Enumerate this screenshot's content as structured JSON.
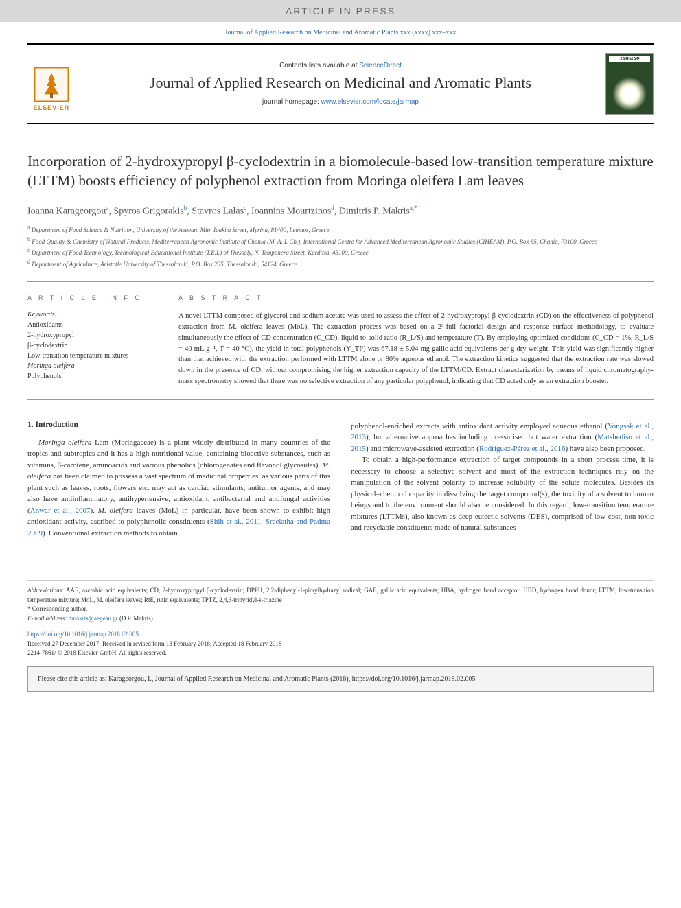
{
  "banner": {
    "article_in_press": "ARTICLE IN PRESS",
    "citation_line": "Journal of Applied Research on Medicinal and Aromatic Plants xxx (xxxx) xxx–xxx"
  },
  "header": {
    "contents_prefix": "Contents lists available at ",
    "contents_link": "ScienceDirect",
    "journal_title": "Journal of Applied Research on Medicinal and Aromatic Plants",
    "homepage_prefix": "journal homepage: ",
    "homepage_link": "www.elsevier.com/locate/jarmap",
    "elsevier_label": "ELSEVIER",
    "cover_label": "JARMAP"
  },
  "article": {
    "title": "Incorporation of 2-hydroxypropyl β-cyclodextrin in a biomolecule-based low-transition temperature mixture (LTTM) boosts efficiency of polyphenol extraction from Moringa oleifera Lam leaves",
    "authors_html": "Ioanna Karageorgou<sup class='author-sup'>a</sup>, Spyros Grigorakis<sup class='author-sup'>b</sup>, Stavros Lalas<sup class='author-sup'>c</sup>, Ioannins Mourtzinos<sup class='author-sup'>d</sup>, Dimitris P. Makris<sup class='author-sup'>a,*</sup>",
    "affiliations": [
      {
        "sup": "a",
        "text": "Department of Food Science & Nutrition, University of the Aegean, Mitr. Ioakim Street, Myrina, 81400, Lemnos, Greece"
      },
      {
        "sup": "b",
        "text": "Food Quality & Chemistry of Natural Products, Mediterranean Agronomic Institute of Chania (M. A. I. Ch.), International Centre for Advanced Mediterranean Agronomic Studies (CIHEAM), P.O. Box 85, Chania, 73100, Greece"
      },
      {
        "sup": "c",
        "text": "Department of Food Technology, Technological Educational Institute (T.E.I.) of Thessaly, N. Temponera Street, Karditsa, 43100, Greece"
      },
      {
        "sup": "d",
        "text": "Department of Agriculture, Aristotle University of Thessaloniki, P.O. Box 235, Thessaloniki, 54124, Greece"
      }
    ]
  },
  "info": {
    "section_label": "A R T I C L E  I N F O",
    "keywords_label": "Keywords:",
    "keywords": [
      "Antioxidants",
      "2-hydroxypropyl",
      "β-cyclodextrin",
      "Low-transition temperature mixtures",
      "Moringa oleifera",
      "Polyphenols"
    ]
  },
  "abstract": {
    "section_label": "A B S T R A C T",
    "text": "A novel LTTM composed of glycerol and sodium acetate was used to assess the effect of 2-hydroxypropyl β-cyclodextrin (CD) on the effectiveness of polyphenol extraction from M. oleifera leaves (MoL). The extraction process was based on a 2³-full factorial design and response surface methodology, to evaluate simultaneously the effect of CD concentration (C_CD), liquid-to-solid ratio (R_L/S) and temperature (T). By employing optimized conditions (C_CD = 1%, R_L/S = 40 mL g⁻¹, T = 40 °C), the yield in total polyphenols (Y_TP) was 67.18 ± 5.04 mg gallic acid equivalents per g dry weight. This yield was significantly higher than that achieved with the extraction performed with LTTM alone or 80% aqueous ethanol. The extraction kinetics suggested that the extraction rate was slowed down in the presence of CD, without compromising the higher extraction capacity of the LTTM/CD. Extract characterization by means of liquid chromatography-mass spectrometry showed that there was no selective extraction of any particular polyphenol, indicating that CD acted only as an extraction booster."
  },
  "body": {
    "heading": "1. Introduction",
    "para1_html": "<i>Moringa oleifera</i> Lam (Moringaceae) is a plant widely distributed in many countries of the tropics and subtropics and it has a high nutritional value, containing bioactive substances, such as vitamins, β-carotene, aminoacids and various phenolics (chlorogenates and flavonol glycosides). <i>M. oleifera</i> has been claimed to possess a vast spectrum of medicinal properties, as various parts of this plant such as leaves, roots, flowers etc. may act as cardiac stimulants, antitumor agents, and may also have antiinflammatory, antihypertensive, antioxidant, antibacterial and antifungal activities (<span class='link'>Anwar et al., 2007</span>). <i>M. oleifera</i> leaves (MoL) in particular, have been shown to exhibit high antioxidant activity, ascribed to polyphenolic constituents (<span class='link'>Shih et al., 2011</span>; <span class='link'>Sreelatha and Padma 2009</span>). Conventional extraction methods to obtain",
    "para2_html": "polyphenol-enriched extracts with antioxidant activity employed aqueous ethanol (<span class='link'>Vongsak et al., 2013</span>), but alternative approaches including pressurised hot water extraction (<span class='link'>Matshediso et al., 2015</span>) and microwave-assisted extraction (<span class='link'>Rodríguez-Pérez et al., 2016</span>) have also been proposed.",
    "para3_html": "To obtain a high-performance extraction of target compounds in a short process time, it is necessary to choose a selective solvent and most of the extraction techniques rely on the manipulation of the solvent polarity to increase solubility of the solute molecules. Besides its physical–chemical capacity in dissolving the target compound(s), the toxicity of a solvent to human beings and to the environment should also be considered. In this regard, low-transition temperature mixtures (LTTMs), also known as deep eutectic solvents (DES), comprised of low-cost, non-toxic and recyclable constituents made of natural substances"
  },
  "footer": {
    "abbrev_label": "Abbreviations:",
    "abbrev_text": " AAE, ascorbic acid equivalents; CD, 2-hydroxypropyl β-cyclodextrin; DPPH, 2,2-diphenyl-1-picrylhydrazyl radical; GAE, gallic acid equivalents; HBA, hydrogen bond acceptor; HBD, hydrogen bond donor; LTTM, low-transition temperature mixture; MoL, M. oleifera leaves; RtE, rutin equivalents; TPTZ, 2,4,6-tripyridyl-s-triazine",
    "corresponding": "* Corresponding author.",
    "email_label": "E-mail address: ",
    "email": "dmakris@aegean.gr",
    "email_suffix": " (D.P. Makris).",
    "doi": "https://doi.org/10.1016/j.jarmap.2018.02.005",
    "dates": "Received 27 December 2017; Received in revised form 13 February 2018; Accepted 18 February 2018",
    "issn": "2214-7861/ © 2018 Elsevier GmbH. All rights reserved."
  },
  "citebox": {
    "text": "Please cite this article as: Karageorgou, I., Journal of Applied Research on Medicinal and Aromatic Plants (2018), https://doi.org/10.1016/j.jarmap.2018.02.005"
  },
  "colors": {
    "link": "#2a6ebb",
    "banner_bg": "#d9d9d9",
    "elsevier_orange": "#d97f00",
    "cover_green": "#2a4a2a",
    "text": "#333333",
    "citebox_bg": "#f4f4f4"
  }
}
